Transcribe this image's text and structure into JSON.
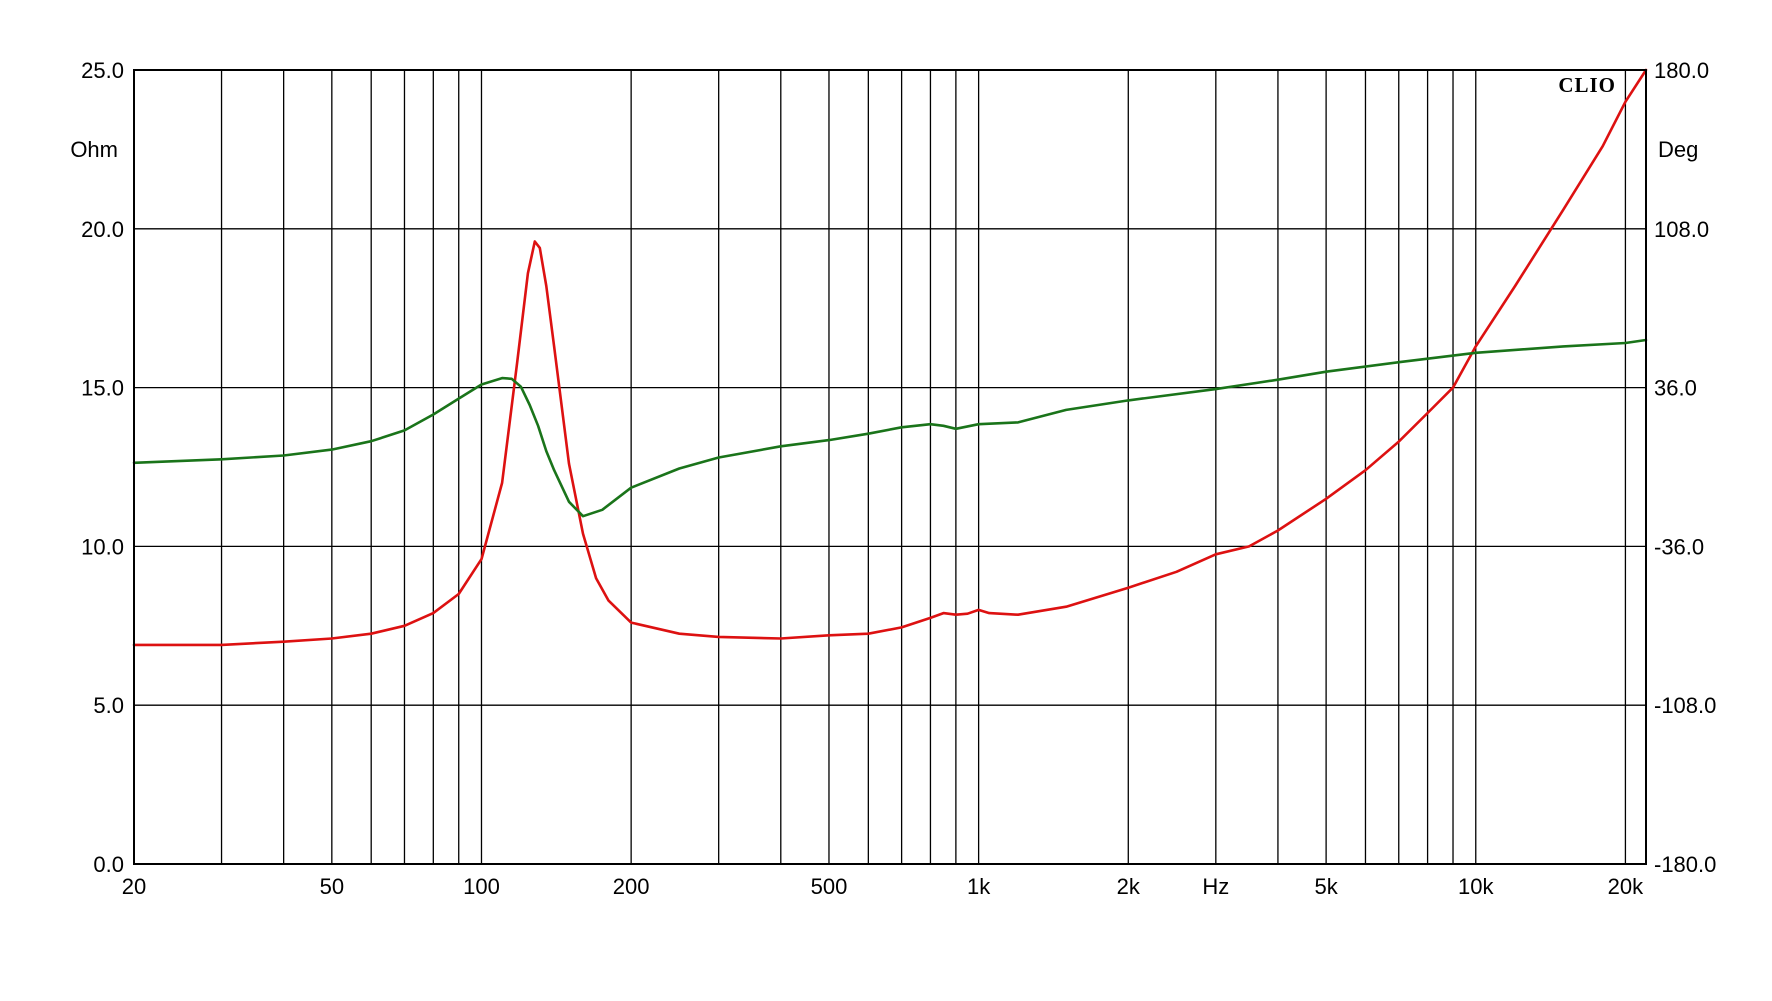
{
  "chart_data": {
    "type": "line",
    "brand": "CLIO",
    "x_scale": "log",
    "xlim": [
      20,
      22000
    ],
    "xlabel": "Hz",
    "x_tick_labels": [
      {
        "value": 20,
        "label": "20"
      },
      {
        "value": 50,
        "label": "50"
      },
      {
        "value": 100,
        "label": "100"
      },
      {
        "value": 200,
        "label": "200"
      },
      {
        "value": 500,
        "label": "500"
      },
      {
        "value": 1000,
        "label": "1k"
      },
      {
        "value": 2000,
        "label": "2k"
      },
      {
        "value": 5000,
        "label": "5k"
      },
      {
        "value": 10000,
        "label": "10k"
      },
      {
        "value": 20000,
        "label": "20k"
      }
    ],
    "y_left": {
      "unit": "Ohm",
      "ylim": [
        0,
        25
      ],
      "ticks": [
        {
          "value": 0,
          "label": "0.0"
        },
        {
          "value": 5,
          "label": "5.0"
        },
        {
          "value": 10,
          "label": "10.0"
        },
        {
          "value": 15,
          "label": "15.0"
        },
        {
          "value": 20,
          "label": "20.0"
        },
        {
          "value": 25,
          "label": "25.0"
        }
      ]
    },
    "y_right": {
      "unit": "Deg",
      "ylim": [
        -180,
        180
      ],
      "ticks": [
        {
          "value": -180,
          "label": "-180.0"
        },
        {
          "value": -108,
          "label": "-108.0"
        },
        {
          "value": -36,
          "label": "-36.0"
        },
        {
          "value": 36,
          "label": "36.0"
        },
        {
          "value": 108,
          "label": "108.0"
        },
        {
          "value": 180,
          "label": "180.0"
        }
      ]
    },
    "grid": true,
    "series": [
      {
        "id": "impedance",
        "axis": "left",
        "color": "#dd1111",
        "points": [
          [
            20,
            6.9
          ],
          [
            30,
            6.9
          ],
          [
            40,
            7.0
          ],
          [
            50,
            7.1
          ],
          [
            60,
            7.25
          ],
          [
            70,
            7.5
          ],
          [
            80,
            7.9
          ],
          [
            90,
            8.5
          ],
          [
            100,
            9.6
          ],
          [
            110,
            12.0
          ],
          [
            118,
            15.8
          ],
          [
            124,
            18.6
          ],
          [
            128,
            19.6
          ],
          [
            131,
            19.4
          ],
          [
            135,
            18.2
          ],
          [
            140,
            16.3
          ],
          [
            150,
            12.6
          ],
          [
            160,
            10.4
          ],
          [
            170,
            9.0
          ],
          [
            180,
            8.3
          ],
          [
            200,
            7.6
          ],
          [
            250,
            7.25
          ],
          [
            300,
            7.15
          ],
          [
            400,
            7.1
          ],
          [
            500,
            7.2
          ],
          [
            600,
            7.25
          ],
          [
            700,
            7.45
          ],
          [
            800,
            7.75
          ],
          [
            850,
            7.9
          ],
          [
            900,
            7.85
          ],
          [
            950,
            7.88
          ],
          [
            1000,
            8.0
          ],
          [
            1050,
            7.9
          ],
          [
            1200,
            7.85
          ],
          [
            1500,
            8.1
          ],
          [
            2000,
            8.7
          ],
          [
            2500,
            9.2
          ],
          [
            3000,
            9.75
          ],
          [
            3500,
            10.0
          ],
          [
            4000,
            10.5
          ],
          [
            5000,
            11.5
          ],
          [
            6000,
            12.4
          ],
          [
            7000,
            13.3
          ],
          [
            8000,
            14.2
          ],
          [
            9000,
            15.0
          ],
          [
            10000,
            16.3
          ],
          [
            12000,
            18.2
          ],
          [
            15000,
            20.6
          ],
          [
            18000,
            22.6
          ],
          [
            20000,
            24.0
          ],
          [
            22000,
            25.0
          ]
        ]
      },
      {
        "id": "phase",
        "axis": "right",
        "color": "#1a741a",
        "points": [
          [
            20,
            1.9
          ],
          [
            30,
            3.5
          ],
          [
            40,
            5.2
          ],
          [
            50,
            7.9
          ],
          [
            60,
            11.7
          ],
          [
            70,
            16.6
          ],
          [
            80,
            23.8
          ],
          [
            90,
            31.0
          ],
          [
            100,
            37.4
          ],
          [
            110,
            40.3
          ],
          [
            115,
            40.0
          ],
          [
            120,
            36.4
          ],
          [
            125,
            28.1
          ],
          [
            130,
            18.7
          ],
          [
            135,
            7.2
          ],
          [
            140,
            -1.4
          ],
          [
            150,
            -15.8
          ],
          [
            160,
            -22.3
          ],
          [
            175,
            -19.4
          ],
          [
            200,
            -9.4
          ],
          [
            250,
            -0.7
          ],
          [
            300,
            4.3
          ],
          [
            400,
            9.4
          ],
          [
            500,
            12.2
          ],
          [
            600,
            15.1
          ],
          [
            700,
            18.0
          ],
          [
            800,
            19.4
          ],
          [
            850,
            18.7
          ],
          [
            900,
            17.3
          ],
          [
            1000,
            19.4
          ],
          [
            1200,
            20.2
          ],
          [
            1500,
            25.9
          ],
          [
            2000,
            30.2
          ],
          [
            3000,
            35.3
          ],
          [
            4000,
            39.6
          ],
          [
            5000,
            43.2
          ],
          [
            7000,
            47.5
          ],
          [
            10000,
            51.8
          ],
          [
            15000,
            54.7
          ],
          [
            20000,
            56.2
          ],
          [
            22000,
            57.6
          ]
        ]
      }
    ]
  }
}
